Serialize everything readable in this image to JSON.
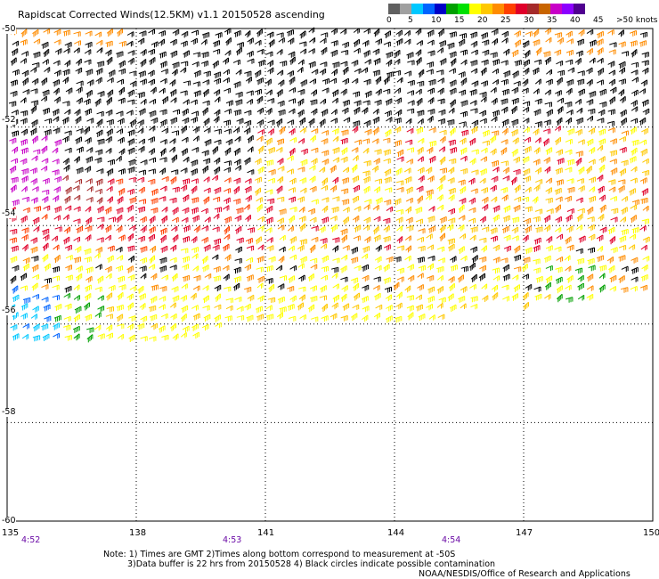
{
  "title": "Rapidscat Corrected Winds(12.5KM) v1.1 20150528 ascending",
  "legend": {
    "colors": [
      "#606060",
      "#a0a0a0",
      "#00c8ff",
      "#0064ff",
      "#0000c8",
      "#00a000",
      "#00e000",
      "#ffff00",
      "#ffc800",
      "#ff8c00",
      "#ff4000",
      "#e0002a",
      "#a52a2a",
      "#c86400",
      "#c800c8",
      "#8c00ff",
      "#500090"
    ],
    "labels": [
      "0",
      "5",
      "10",
      "15",
      "20",
      "25",
      "30",
      "35",
      "40",
      "45",
      ">50 knots"
    ]
  },
  "axes": {
    "lon_ticks": [
      "135",
      "138",
      "141",
      "144",
      "147",
      "150"
    ],
    "lat_ticks": [
      "-50",
      "-52",
      "-54",
      "-56",
      "-58",
      "-60"
    ],
    "lon_range": [
      135,
      150
    ],
    "lat_range": [
      -60,
      -50
    ],
    "grid": "dotted"
  },
  "times": [
    "4:52",
    "4:53",
    "4:54"
  ],
  "notes": {
    "line1": "Note: 1) Times are GMT 2)Times along bottom correspond to measurement at -50S",
    "line2": "3)Data buffer is 22 hrs from 20150528 4) Black circles indicate possible contamination",
    "credit": "NOAA/NESDIS/Office of Research and Applications"
  }
}
